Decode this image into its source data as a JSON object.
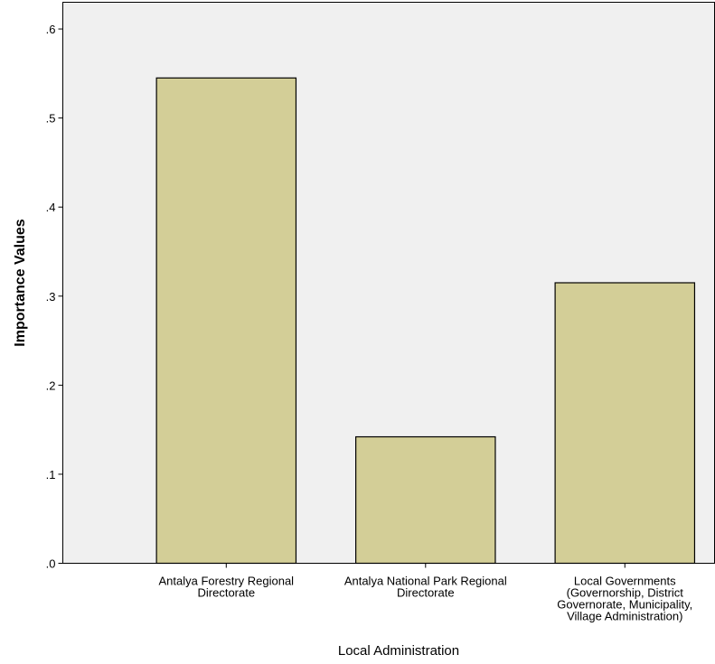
{
  "chart_data": {
    "type": "bar",
    "title": "",
    "xlabel": "Local Administration",
    "ylabel": "Importance Values",
    "ylim": [
      0,
      0.63
    ],
    "yticks": [
      {
        "value": 0.0,
        "label": ".0"
      },
      {
        "value": 0.1,
        "label": ".1"
      },
      {
        "value": 0.2,
        "label": ".2"
      },
      {
        "value": 0.3,
        "label": ".3"
      },
      {
        "value": 0.4,
        "label": ".4"
      },
      {
        "value": 0.5,
        "label": ".5"
      },
      {
        "value": 0.6,
        "label": ".6"
      }
    ],
    "categories": [
      [
        "Antalya Forestry Regional",
        "Directorate"
      ],
      [
        "Antalya National Park Regional",
        "Directorate"
      ],
      [
        "Local Governments",
        "(Governorship, District",
        "Governorate, Municipality,",
        "Village Administration)"
      ]
    ],
    "values": [
      0.545,
      0.142,
      0.315
    ],
    "grid": false,
    "legend": "none",
    "colors": {
      "bar_fill": "#d3ce97",
      "plot_background": "#f0f0f0"
    }
  }
}
